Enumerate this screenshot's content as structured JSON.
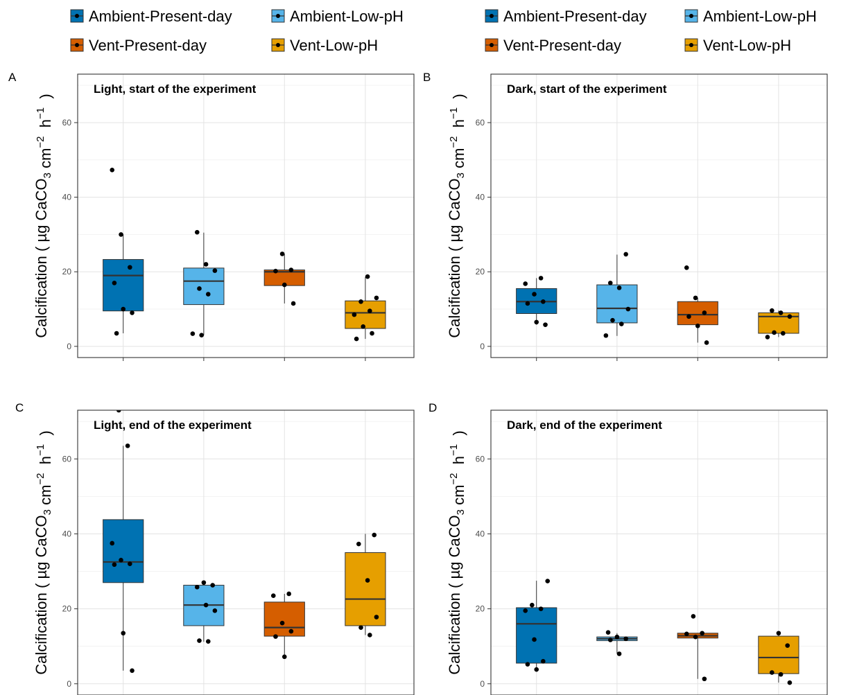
{
  "legends": [
    {
      "entries": [
        {
          "label": "Ambient-Present-day",
          "color": "#0072B2"
        },
        {
          "label": "Ambient-Low-pH",
          "color": "#56B4E9"
        },
        {
          "label": "Vent-Present-day",
          "color": "#D55E00"
        },
        {
          "label": "Vent-Low-pH",
          "color": "#E69F00"
        }
      ]
    },
    {
      "entries": [
        {
          "label": "Ambient-Present-day",
          "color": "#0072B2"
        },
        {
          "label": "Ambient-Low-pH",
          "color": "#56B4E9"
        },
        {
          "label": "Vent-Present-day",
          "color": "#D55E00"
        },
        {
          "label": "Vent-Low-pH",
          "color": "#E69F00"
        }
      ]
    }
  ],
  "chart_data": [
    {
      "type": "box",
      "panel_letter": "A",
      "title": "Light, start of the experiment",
      "ylabel": "Calcification ( µg CaCO3 cm-2 h-1 )",
      "ylim": [
        -3,
        73
      ],
      "yticks": [
        0,
        20,
        40,
        60
      ],
      "grid": true,
      "groups": [
        {
          "name": "Ambient-Present-day",
          "color": "#0072B2",
          "q1": 9.5,
          "median": 19,
          "q3": 23.3,
          "whisker_low": 3.5,
          "whisker_high": 30,
          "points": [
            47.3,
            30,
            21.2,
            17,
            10,
            9,
            3.5
          ]
        },
        {
          "name": "Ambient-Low-pH",
          "color": "#56B4E9",
          "q1": 11.2,
          "median": 17.5,
          "q3": 21,
          "whisker_low": 3,
          "whisker_high": 30.5,
          "points": [
            30.6,
            22,
            20.3,
            15.5,
            14,
            3.4,
            3
          ]
        },
        {
          "name": "Vent-Present-day",
          "color": "#D55E00",
          "q1": 16.3,
          "median": 20,
          "q3": 20.5,
          "whisker_low": 11.5,
          "whisker_high": 24.8,
          "points": [
            24.8,
            20.5,
            20.2,
            16.5,
            11.5
          ]
        },
        {
          "name": "Vent-Low-pH",
          "color": "#E69F00",
          "q1": 4.8,
          "median": 9,
          "q3": 12.2,
          "whisker_low": 2,
          "whisker_high": 18.6,
          "points": [
            18.7,
            13,
            12,
            9.5,
            8.5,
            5.3,
            3.5,
            2
          ]
        }
      ]
    },
    {
      "type": "box",
      "panel_letter": "B",
      "title": "Dark, start of the experiment",
      "ylabel": "Calcification ( µg CaCO3 cm-2 h-1 )",
      "ylim": [
        -3,
        73
      ],
      "yticks": [
        0,
        20,
        40,
        60
      ],
      "grid": true,
      "groups": [
        {
          "name": "Ambient-Present-day",
          "color": "#0072B2",
          "q1": 8.8,
          "median": 12,
          "q3": 15.5,
          "whisker_low": 5.8,
          "whisker_high": 18.3,
          "points": [
            18.3,
            16.8,
            14,
            12,
            11.5,
            6.5,
            5.8
          ]
        },
        {
          "name": "Ambient-Low-pH",
          "color": "#56B4E9",
          "q1": 6.3,
          "median": 10.2,
          "q3": 16.5,
          "whisker_low": 2.8,
          "whisker_high": 24.6,
          "points": [
            24.7,
            17,
            15.7,
            10,
            7,
            6,
            2.9
          ]
        },
        {
          "name": "Vent-Present-day",
          "color": "#D55E00",
          "q1": 5.8,
          "median": 8.5,
          "q3": 12,
          "whisker_low": 1,
          "whisker_high": 13,
          "points": [
            21.1,
            13,
            9,
            8,
            5.5,
            1
          ]
        },
        {
          "name": "Vent-Low-pH",
          "color": "#E69F00",
          "q1": 3.5,
          "median": 8,
          "q3": 9,
          "whisker_low": 2.5,
          "whisker_high": 9.6,
          "points": [
            9.6,
            9,
            8,
            3.7,
            3.5,
            2.5
          ]
        }
      ]
    },
    {
      "type": "box",
      "panel_letter": "C",
      "title": "Light, end of the experiment",
      "ylabel": "Calcification ( µg CaCO3 cm-2 h-1 )",
      "ylim": [
        -3,
        73
      ],
      "yticks": [
        0,
        20,
        40,
        60
      ],
      "grid": true,
      "groups": [
        {
          "name": "Ambient-Present-day",
          "color": "#0072B2",
          "q1": 27,
          "median": 32.5,
          "q3": 43.8,
          "whisker_low": 3.5,
          "whisker_high": 63.5,
          "points": [
            73,
            63.5,
            37.5,
            33,
            32,
            31.8,
            13.5,
            3.5
          ]
        },
        {
          "name": "Ambient-Low-pH",
          "color": "#56B4E9",
          "q1": 15.5,
          "median": 21,
          "q3": 26.3,
          "whisker_low": 11.2,
          "whisker_high": 27,
          "points": [
            27,
            26.3,
            25.8,
            21,
            19.5,
            11.5,
            11.3
          ]
        },
        {
          "name": "Vent-Present-day",
          "color": "#D55E00",
          "q1": 12.7,
          "median": 15,
          "q3": 21.8,
          "whisker_low": 7.2,
          "whisker_high": 24,
          "points": [
            24,
            23.5,
            16.2,
            14,
            12.6,
            7.2
          ]
        },
        {
          "name": "Vent-Low-pH",
          "color": "#E69F00",
          "q1": 15.5,
          "median": 22.6,
          "q3": 35,
          "whisker_low": 13,
          "whisker_high": 40,
          "points": [
            39.7,
            37.3,
            27.6,
            17.8,
            15,
            13
          ]
        }
      ]
    },
    {
      "type": "box",
      "panel_letter": "D",
      "title": "Dark, end of the experiment",
      "ylabel": "Calcification ( µg CaCO3 cm-2 h-1 )",
      "ylim": [
        -3,
        73
      ],
      "yticks": [
        0,
        20,
        40,
        60
      ],
      "grid": true,
      "groups": [
        {
          "name": "Ambient-Present-day",
          "color": "#0072B2",
          "q1": 5.5,
          "median": 16,
          "q3": 20.3,
          "whisker_low": 3.8,
          "whisker_high": 27.5,
          "points": [
            27.4,
            21,
            20,
            19.5,
            11.8,
            6,
            5.2,
            3.8
          ]
        },
        {
          "name": "Ambient-Low-pH",
          "color": "#56B4E9",
          "q1": 11.5,
          "median": 12,
          "q3": 12.5,
          "whisker_low": 8,
          "whisker_high": 13.5,
          "points": [
            13.7,
            12.5,
            12,
            11.7,
            8
          ]
        },
        {
          "name": "Vent-Present-day",
          "color": "#D55E00",
          "q1": 12.2,
          "median": 12.8,
          "q3": 13.5,
          "whisker_low": 1.3,
          "whisker_high": 13.5,
          "points": [
            18,
            13.5,
            13.3,
            12.5,
            1.3
          ]
        },
        {
          "name": "Vent-Low-pH",
          "color": "#E69F00",
          "q1": 2.7,
          "median": 7,
          "q3": 12.7,
          "whisker_low": 0.3,
          "whisker_high": 13.3,
          "points": [
            13.5,
            10.2,
            3,
            2.5,
            0.3
          ]
        }
      ]
    }
  ]
}
